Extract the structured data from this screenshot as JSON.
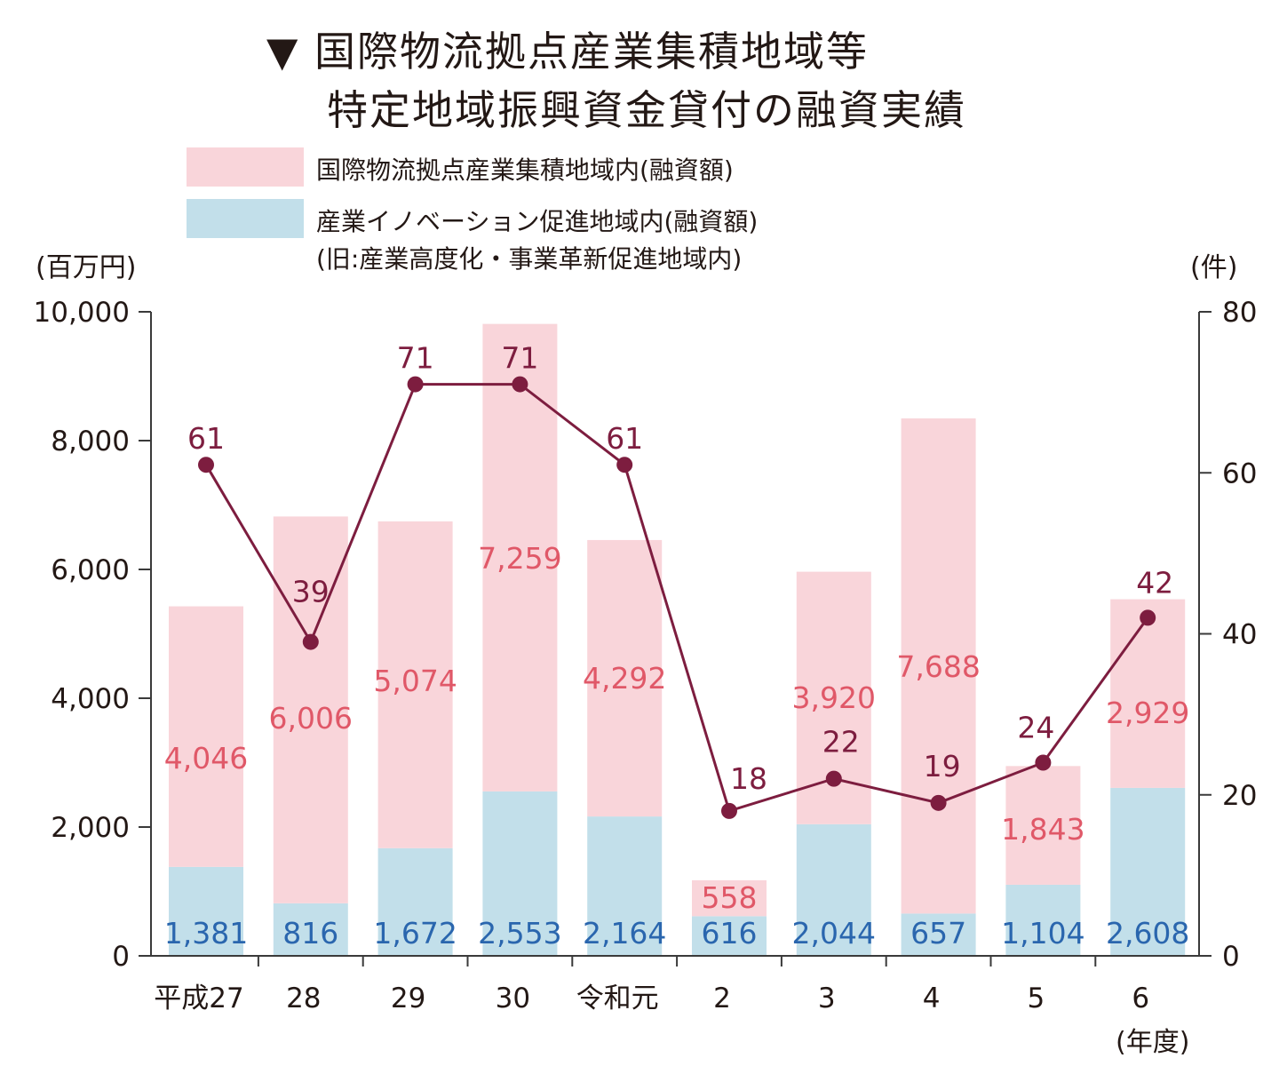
{
  "title": {
    "line1": "▼ 国際物流拠点産業集積地域等",
    "line2": "特定地域振興資金貸付の融資実績"
  },
  "legend": {
    "pink": "国際物流拠点産業集積地域内(融資額)",
    "blue_line1": "産業イノベーション促進地域内(融資額)",
    "blue_line2": "(旧:産業高度化・事業革新促進地域内)"
  },
  "units": {
    "left": "(百万円)",
    "right": "(件)",
    "x": "(年度)"
  },
  "colors": {
    "pink_bar": "#f9d5da",
    "blue_bar": "#c2dfea",
    "pink_label": "#e05868",
    "blue_label": "#2a66ae",
    "line": "#7d1d3f",
    "axis": "#3a3a3a"
  },
  "chart_data": {
    "type": "bar",
    "stacked": true,
    "categories": [
      "平成27",
      "28",
      "29",
      "30",
      "令和元",
      "2",
      "3",
      "4",
      "5",
      "6"
    ],
    "series": [
      {
        "name": "産業イノベーション促進地域内(融資額)",
        "axis": "left",
        "values": [
          1381,
          816,
          1672,
          2553,
          2164,
          616,
          2044,
          657,
          1104,
          2608
        ]
      },
      {
        "name": "国際物流拠点産業集積地域内(融資額)",
        "axis": "left",
        "values": [
          4046,
          6006,
          5074,
          7259,
          4292,
          558,
          3920,
          7688,
          1843,
          2929
        ]
      },
      {
        "name": "件数",
        "type": "line",
        "axis": "right",
        "values": [
          61,
          39,
          71,
          71,
          61,
          18,
          22,
          19,
          24,
          42
        ]
      }
    ],
    "value_labels": {
      "blue": [
        "1,381",
        "816",
        "1,672",
        "2,553",
        "2,164",
        "616",
        "2,044",
        "657",
        "1,104",
        "2,608"
      ],
      "pink": [
        "4,046",
        "6,006",
        "5,074",
        "7,259",
        "4,292",
        "558",
        "3,920",
        "7,688",
        "1,843",
        "2,929"
      ],
      "count": [
        "61",
        "39",
        "71",
        "71",
        "61",
        "18",
        "22",
        "19",
        "24",
        "42"
      ]
    },
    "y_left": {
      "range": [
        0,
        10000
      ],
      "ticks": [
        0,
        2000,
        4000,
        6000,
        8000,
        10000
      ],
      "tick_labels": [
        "0",
        "2,000",
        "4,000",
        "6,000",
        "8,000",
        "10,000"
      ]
    },
    "y_right": {
      "range": [
        0,
        80
      ],
      "ticks": [
        0,
        20,
        40,
        60,
        80
      ],
      "tick_labels": [
        "0",
        "20",
        "40",
        "60",
        "80"
      ]
    },
    "ylabel_left": "(百万円)",
    "ylabel_right": "(件)",
    "xlabel": "(年度)"
  }
}
